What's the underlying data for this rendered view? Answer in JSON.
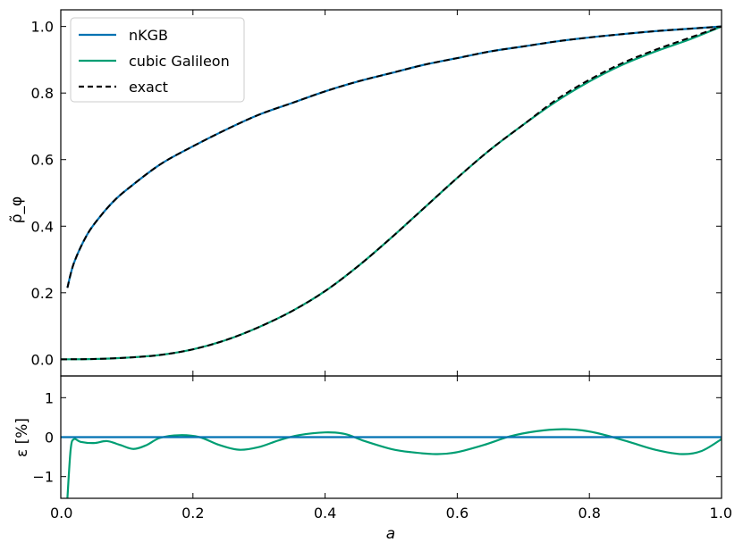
{
  "chart_data": [
    {
      "type": "line",
      "panel": "main",
      "xlim": [
        0.0,
        1.0
      ],
      "ylim": [
        -0.05,
        1.05
      ],
      "xlabel": "",
      "ylabel": "ρ̃_φ",
      "yticks": [
        0.0,
        0.2,
        0.4,
        0.6,
        0.8,
        1.0
      ],
      "ytick_labels": [
        "0.0",
        "0.2",
        "0.4",
        "0.6",
        "0.8",
        "1.0"
      ],
      "grid": false,
      "legend": {
        "placement": "top-left",
        "entries": [
          {
            "label": "nKGB",
            "color": "#0072b2",
            "style": "solid"
          },
          {
            "label": "cubic Galileon",
            "color": "#009e73",
            "style": "solid"
          },
          {
            "label": "exact",
            "color": "#000000",
            "style": "dashed"
          }
        ]
      },
      "series": [
        {
          "name": "nKGB",
          "color": "#0072b2",
          "style": "solid",
          "x": [
            0.01,
            0.02,
            0.04,
            0.06,
            0.08,
            0.1,
            0.15,
            0.2,
            0.25,
            0.3,
            0.35,
            0.4,
            0.45,
            0.5,
            0.55,
            0.6,
            0.65,
            0.7,
            0.75,
            0.8,
            0.85,
            0.9,
            0.95,
            1.0
          ],
          "y": [
            0.215,
            0.29,
            0.375,
            0.43,
            0.475,
            0.51,
            0.585,
            0.64,
            0.69,
            0.735,
            0.77,
            0.805,
            0.835,
            0.86,
            0.885,
            0.905,
            0.925,
            0.94,
            0.955,
            0.967,
            0.977,
            0.986,
            0.993,
            1.0
          ]
        },
        {
          "name": "cubic Galileon",
          "color": "#009e73",
          "style": "solid",
          "x": [
            0.0,
            0.05,
            0.1,
            0.15,
            0.2,
            0.25,
            0.3,
            0.35,
            0.4,
            0.45,
            0.5,
            0.55,
            0.6,
            0.65,
            0.7,
            0.75,
            0.8,
            0.85,
            0.9,
            0.95,
            1.0
          ],
          "y": [
            0.0,
            0.001,
            0.005,
            0.013,
            0.03,
            0.058,
            0.097,
            0.145,
            0.205,
            0.28,
            0.365,
            0.455,
            0.545,
            0.63,
            0.705,
            0.775,
            0.835,
            0.885,
            0.925,
            0.96,
            1.0
          ]
        },
        {
          "name": "exact",
          "color": "#000000",
          "style": "dashed",
          "curves": [
            {
              "x": [
                0.01,
                0.02,
                0.04,
                0.06,
                0.08,
                0.1,
                0.15,
                0.2,
                0.25,
                0.3,
                0.35,
                0.4,
                0.45,
                0.5,
                0.55,
                0.6,
                0.65,
                0.7,
                0.75,
                0.8,
                0.85,
                0.9,
                0.95,
                1.0
              ],
              "y": [
                0.215,
                0.29,
                0.375,
                0.43,
                0.475,
                0.51,
                0.585,
                0.64,
                0.69,
                0.735,
                0.77,
                0.805,
                0.835,
                0.86,
                0.885,
                0.905,
                0.925,
                0.94,
                0.955,
                0.967,
                0.977,
                0.986,
                0.993,
                1.0
              ]
            },
            {
              "x": [
                0.0,
                0.05,
                0.1,
                0.15,
                0.2,
                0.25,
                0.3,
                0.35,
                0.4,
                0.45,
                0.5,
                0.55,
                0.6,
                0.65,
                0.7,
                0.75,
                0.8,
                0.85,
                0.9,
                0.95,
                1.0
              ],
              "y": [
                0.0,
                0.001,
                0.005,
                0.013,
                0.03,
                0.058,
                0.097,
                0.145,
                0.205,
                0.28,
                0.365,
                0.455,
                0.545,
                0.63,
                0.705,
                0.78,
                0.84,
                0.89,
                0.93,
                0.965,
                1.0
              ]
            }
          ]
        }
      ]
    },
    {
      "type": "line",
      "panel": "residual",
      "xlim": [
        0.0,
        1.0
      ],
      "ylim": [
        -1.55,
        1.55
      ],
      "xlabel": "a",
      "ylabel": "ε [%]",
      "xticks": [
        0.0,
        0.2,
        0.4,
        0.6,
        0.8,
        1.0
      ],
      "xtick_labels": [
        "0.0",
        "0.2",
        "0.4",
        "0.6",
        "0.8",
        "1.0"
      ],
      "yticks": [
        -1,
        0,
        1
      ],
      "ytick_labels": [
        "−1",
        "0",
        "1"
      ],
      "grid": false,
      "series": [
        {
          "name": "cubic Galileon",
          "color": "#009e73",
          "style": "solid",
          "x": [
            0.01,
            0.015,
            0.02,
            0.03,
            0.05,
            0.07,
            0.09,
            0.11,
            0.13,
            0.15,
            0.18,
            0.21,
            0.24,
            0.27,
            0.3,
            0.33,
            0.36,
            0.4,
            0.43,
            0.46,
            0.5,
            0.53,
            0.57,
            0.6,
            0.64,
            0.68,
            0.72,
            0.76,
            0.79,
            0.82,
            0.86,
            0.9,
            0.94,
            0.97,
            1.0
          ],
          "y": [
            -1.55,
            -0.3,
            -0.05,
            -0.12,
            -0.15,
            -0.1,
            -0.2,
            -0.3,
            -0.2,
            -0.02,
            0.05,
            0.0,
            -0.2,
            -0.32,
            -0.25,
            -0.08,
            0.05,
            0.12,
            0.08,
            -0.1,
            -0.3,
            -0.38,
            -0.43,
            -0.38,
            -0.2,
            0.02,
            0.15,
            0.2,
            0.17,
            0.07,
            -0.12,
            -0.32,
            -0.43,
            -0.35,
            -0.05
          ]
        },
        {
          "name": "nKGB",
          "color": "#0072b2",
          "style": "solid",
          "x": [
            0.0,
            0.1,
            0.2,
            0.3,
            0.4,
            0.5,
            0.6,
            0.7,
            0.8,
            0.9,
            1.0
          ],
          "y": [
            0.0,
            0.0,
            0.0,
            0.0,
            0.0,
            0.0,
            0.0,
            0.0,
            0.0,
            0.0,
            0.0
          ]
        }
      ]
    }
  ]
}
